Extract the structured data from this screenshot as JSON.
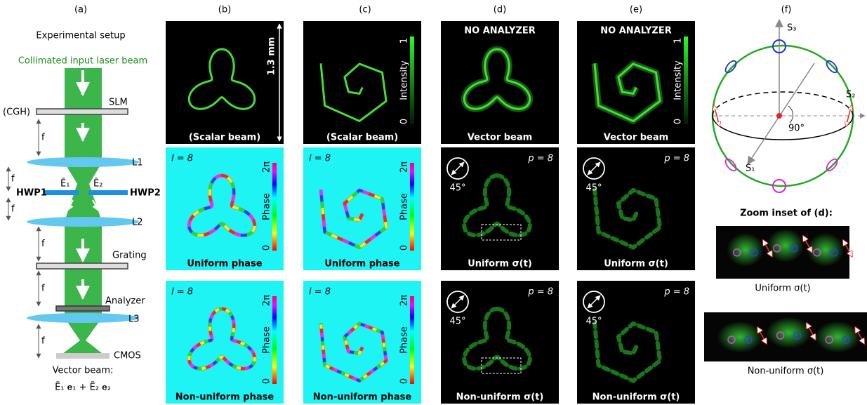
{
  "panel_labels": [
    "(a)",
    "(b)",
    "(c)",
    "(d)",
    "(e)",
    "(f)"
  ],
  "setup": {
    "title": "Experimental setup",
    "input": "Collimated input laser beam",
    "cgh": "(CGH)",
    "slm": "SLM",
    "l1": "L1",
    "e1": "Ẽ₁",
    "e2": "Ẽ₂",
    "hwp1": "HWP1",
    "hwp2": "HWP2",
    "l2": "L2",
    "grating": "Grating",
    "analyzer": "Analyzer",
    "l3": "L3",
    "cmos": "CMOS",
    "f_labels": [
      "f",
      "f",
      "f",
      "f",
      "f",
      "f"
    ],
    "output": "Vector beam:",
    "formula": "Ẽ₁ 𝐞₁ + Ẽ₂ 𝐞₂"
  },
  "scale_bar": "1.3 mm",
  "cells": [
    [
      {
        "caption": "(Scalar beam)"
      },
      {
        "caption": "(Scalar beam)",
        "colorbar": {
          "label": "Intensity",
          "max": "1",
          "min": "0"
        }
      },
      {
        "header": "NO ANALYZER",
        "caption": "Vector beam"
      },
      {
        "header": "NO ANALYZER",
        "caption": "Vector beam",
        "colorbar": {
          "label": "Intensity",
          "max": "1",
          "min": "0"
        }
      }
    ],
    [
      {
        "tag": "l = 8",
        "caption": "Uniform phase",
        "colorbar": {
          "label": "Phase",
          "max": "2π",
          "min": "0"
        }
      },
      {
        "tag": "l = 8",
        "caption": "Uniform phase",
        "colorbar": {
          "label": "Phase",
          "max": "2π",
          "min": "0"
        }
      },
      {
        "tag": "p = 8",
        "angle": "45°",
        "caption": "Uniform σ(t)"
      },
      {
        "tag": "p = 8",
        "angle": "45°",
        "caption": "Uniform σ(t)"
      }
    ],
    [
      {
        "tag": "l = 8",
        "caption": "Non-uniform phase",
        "colorbar": {
          "label": "Phase",
          "max": "2π",
          "min": "0"
        }
      },
      {
        "tag": "l = 8",
        "caption": "Non-uniform phase",
        "colorbar": {
          "label": "Phase",
          "max": "2π",
          "min": "0"
        }
      },
      {
        "tag": "p = 8",
        "angle": "45°",
        "caption": "Non-uniform σ(t)"
      },
      {
        "tag": "p = 8",
        "angle": "45°",
        "caption": "Non-uniform σ(t)"
      }
    ]
  ],
  "sphere": {
    "s3": "S₃",
    "s2": "S₂",
    "s1": "S₁",
    "angle": "90°"
  },
  "zoom": {
    "title": "Zoom inset of (d):",
    "captions": [
      "Uniform σ(t)",
      "Non-uniform σ(t)"
    ]
  }
}
